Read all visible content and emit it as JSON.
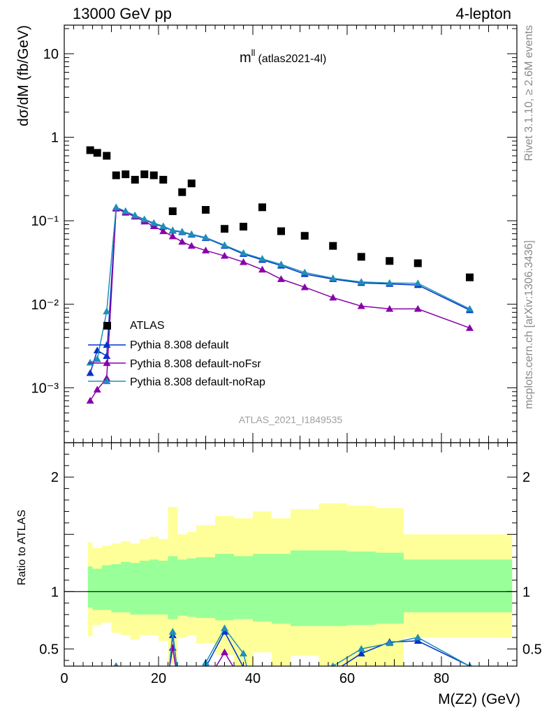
{
  "header": {
    "energy": "13000 GeV pp",
    "process": "4-lepton"
  },
  "plot_title": {
    "main": "m",
    "superscript": "ll",
    "suffix": "(atlas2021-4l)"
  },
  "side_labels": {
    "rivet": "Rivet 3.1.10, ≥ 2.6M events",
    "source": "mcplots.cern.ch [arXiv:1306.3436]"
  },
  "analysis_tag": "ATLAS_2021_I1849535",
  "colors": {
    "data": "#000000",
    "default": "#0033cc",
    "noFsr": "#8800aa",
    "noRap": "#1f8fb8",
    "band_inner": "#99ff99",
    "band_outer": "#ffff99"
  },
  "chart_data": [
    {
      "type": "scatter",
      "panel": "main",
      "ylabel": "dσ/dM (fb/GeV)",
      "yscale": "log",
      "ylim": [
        0.00022,
        22
      ],
      "xlim": [
        0,
        96
      ],
      "ytick_labels": [
        "10⁻³",
        "10⁻²",
        "10⁻¹",
        "1",
        "10"
      ],
      "legend_position": "middle-left",
      "series": [
        {
          "name": "ATLAS",
          "marker": "square",
          "x": [
            5.5,
            7.0,
            9.0,
            11.0,
            13.0,
            15.0,
            17.0,
            19.0,
            21.0,
            23.0,
            25.0,
            27.0,
            30.0,
            34.0,
            38.0,
            42.0,
            46.0,
            51.0,
            57.0,
            63.0,
            69.0,
            75.0,
            86.0
          ],
          "y": [
            0.7,
            0.65,
            0.6,
            0.35,
            0.36,
            0.31,
            0.36,
            0.35,
            0.31,
            0.13,
            0.22,
            0.28,
            0.135,
            0.08,
            0.085,
            0.145,
            0.075,
            0.066,
            0.05,
            0.037,
            0.033,
            0.031,
            0.021
          ]
        },
        {
          "name": "Pythia 8.308 default",
          "marker": "triangle",
          "x": [
            5.5,
            7.0,
            9.0,
            11.0,
            13.0,
            15.0,
            17.0,
            19.0,
            21.0,
            23.0,
            25.0,
            27.0,
            30.0,
            34.0,
            38.0,
            42.0,
            46.0,
            51.0,
            57.0,
            63.0,
            69.0,
            75.0,
            86.0
          ],
          "y": [
            0.0015,
            0.0028,
            0.0024,
            0.14,
            0.13,
            0.115,
            0.103,
            0.092,
            0.085,
            0.076,
            0.073,
            0.068,
            0.062,
            0.05,
            0.04,
            0.034,
            0.029,
            0.023,
            0.02,
            0.018,
            0.0175,
            0.017,
            0.0085
          ]
        },
        {
          "name": "Pythia 8.308 default-noFsr",
          "marker": "triangle",
          "x": [
            5.5,
            7.0,
            9.0,
            11.0,
            13.0,
            15.0,
            17.0,
            19.0,
            21.0,
            23.0,
            25.0,
            27.0,
            30.0,
            34.0,
            38.0,
            42.0,
            46.0,
            51.0,
            57.0,
            63.0,
            69.0,
            75.0,
            86.0
          ],
          "y": [
            0.0007,
            0.00095,
            0.0013,
            0.14,
            0.125,
            0.112,
            0.098,
            0.086,
            0.075,
            0.065,
            0.056,
            0.05,
            0.044,
            0.038,
            0.032,
            0.026,
            0.02,
            0.016,
            0.012,
            0.0095,
            0.0088,
            0.0088,
            0.0052
          ]
        },
        {
          "name": "Pythia 8.308 default-noRap",
          "marker": "triangle",
          "x": [
            5.5,
            7.0,
            9.0,
            11.0,
            13.0,
            15.0,
            17.0,
            19.0,
            21.0,
            23.0,
            25.0,
            27.0,
            30.0,
            34.0,
            38.0,
            42.0,
            46.0,
            51.0,
            57.0,
            63.0,
            69.0,
            75.0,
            86.0
          ],
          "y": [
            0.002,
            0.0022,
            0.0082,
            0.145,
            0.13,
            0.116,
            0.104,
            0.094,
            0.086,
            0.077,
            0.074,
            0.069,
            0.063,
            0.051,
            0.041,
            0.035,
            0.03,
            0.024,
            0.0205,
            0.0185,
            0.018,
            0.0178,
            0.0088
          ]
        }
      ]
    },
    {
      "type": "line",
      "panel": "ratio",
      "xlabel": "M(Z2) (GeV)",
      "ylabel": "Ratio to ATLAS",
      "ylim": [
        0.35,
        2.3
      ],
      "xlim": [
        0,
        96
      ],
      "x_tick_labels": [
        "0",
        "20",
        "40",
        "60",
        "80"
      ],
      "y_tick_labels": [
        "0.5",
        "1",
        "2"
      ],
      "bands": {
        "x_edges": [
          5,
          6,
          8,
          10,
          12,
          14,
          16,
          18,
          20,
          22,
          24,
          26,
          28,
          32,
          36,
          40,
          44,
          48,
          54,
          60,
          66,
          72,
          78,
          95
        ],
        "inner_hi": [
          1.22,
          1.2,
          1.23,
          1.24,
          1.26,
          1.25,
          1.27,
          1.28,
          1.27,
          1.31,
          1.28,
          1.29,
          1.3,
          1.33,
          1.31,
          1.33,
          1.33,
          1.36,
          1.36,
          1.35,
          1.34,
          1.28,
          1.28
        ],
        "inner_lo": [
          0.86,
          0.84,
          0.84,
          0.82,
          0.82,
          0.8,
          0.8,
          0.8,
          0.8,
          0.76,
          0.79,
          0.78,
          0.77,
          0.75,
          0.76,
          0.74,
          0.72,
          0.7,
          0.7,
          0.71,
          0.72,
          0.82,
          0.82
        ],
        "outer_hi": [
          1.43,
          1.38,
          1.4,
          1.42,
          1.44,
          1.42,
          1.46,
          1.48,
          1.46,
          1.74,
          1.5,
          1.52,
          1.58,
          1.66,
          1.64,
          1.7,
          1.64,
          1.72,
          1.77,
          1.75,
          1.73,
          1.5,
          1.5
        ],
        "outer_lo": [
          0.61,
          0.71,
          0.73,
          0.64,
          0.62,
          0.58,
          0.62,
          0.62,
          0.57,
          0.37,
          0.6,
          0.62,
          0.55,
          0.45,
          0.35,
          0.47,
          0.35,
          0.44,
          0.3,
          0.3,
          0.3,
          0.6,
          0.6
        ]
      },
      "series": [
        {
          "name": "Pythia 8.308 default",
          "x": [
            11.0,
            22.2,
            23.0,
            24.0,
            29.8,
            30.0,
            34.0,
            38.0,
            39.0,
            57.0,
            63.0,
            69.0,
            75.0,
            86.0
          ],
          "y": [
            0.35,
            0.3,
            0.62,
            0.3,
            0.3,
            0.34,
            0.65,
            0.34,
            0.3,
            0.3,
            0.46,
            0.56,
            0.57,
            0.35
          ]
        },
        {
          "name": "Pythia 8.308 default-noFsr",
          "x": [
            11.0,
            22.2,
            23.0,
            23.8,
            31.5,
            34.0,
            36.5
          ],
          "y": [
            0.35,
            0.3,
            0.51,
            0.3,
            0.3,
            0.47,
            0.3
          ]
        },
        {
          "name": "Pythia 8.308 default-noRap",
          "x": [
            11.0,
            22.2,
            23.0,
            24.0,
            29.8,
            30.0,
            34.0,
            38.0,
            39.0,
            55.0,
            57.0,
            63.0,
            69.0,
            75.0,
            86.0
          ],
          "y": [
            0.35,
            0.3,
            0.65,
            0.3,
            0.3,
            0.38,
            0.68,
            0.46,
            0.3,
            0.3,
            0.35,
            0.5,
            0.55,
            0.6,
            0.35
          ]
        }
      ]
    }
  ]
}
